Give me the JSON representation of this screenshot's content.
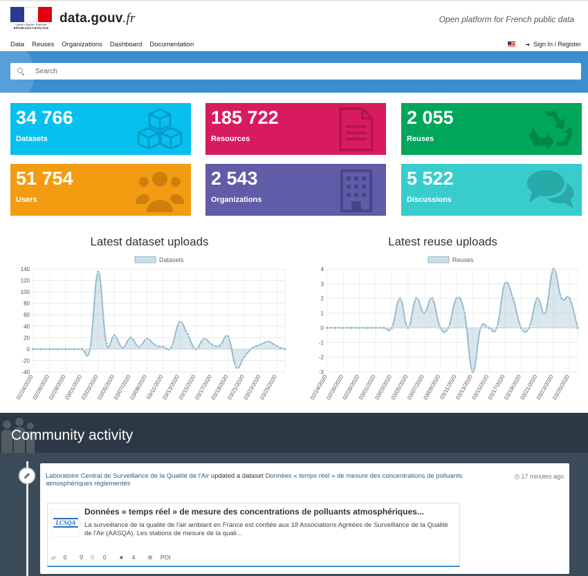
{
  "header": {
    "motto_line1": "Liberté • Égalité • Fraternité",
    "motto_line2": "RÉPUBLIQUE FRANÇAISE",
    "site_name": "data.gouv",
    "site_suffix": ".fr",
    "tagline": "Open platform for French public data",
    "nav": [
      "Data",
      "Reuses",
      "Organizations",
      "Dashboard",
      "Documentation"
    ],
    "signin": "Sign In / Register"
  },
  "search": {
    "placeholder": "Search"
  },
  "stats": [
    {
      "value": "34 766",
      "label": "Datasets",
      "color": "#06c0ef",
      "icon": "cubes-icon"
    },
    {
      "value": "185 722",
      "label": "Resources",
      "color": "#d81b5f",
      "icon": "document-icon"
    },
    {
      "value": "2 055",
      "label": "Reuses",
      "color": "#00a65a",
      "icon": "recycle-icon"
    },
    {
      "value": "51 754",
      "label": "Users",
      "color": "#f39c12",
      "icon": "users-icon"
    },
    {
      "value": "2 543",
      "label": "Organizations",
      "color": "#605ca8",
      "icon": "building-icon"
    },
    {
      "value": "5 522",
      "label": "Discussions",
      "color": "#39cccc",
      "icon": "comments-icon"
    }
  ],
  "chart_data": [
    {
      "type": "area",
      "title": "Latest dataset uploads",
      "x": [
        "02/24/2020",
        "02/25/2020",
        "02/26/2020",
        "02/27/2020",
        "02/28/2020",
        "02/29/2020",
        "03/01/2020",
        "03/02/2020",
        "03/03/2020",
        "03/04/2020",
        "03/05/2020",
        "03/06/2020",
        "03/07/2020",
        "03/08/2020",
        "03/09/2020",
        "03/10/2020",
        "03/11/2020",
        "03/12/2020",
        "03/13/2020",
        "03/14/2020",
        "03/15/2020",
        "03/16/2020",
        "03/17/2020",
        "03/18/2020",
        "03/19/2020",
        "03/20/2020",
        "03/21/2020",
        "03/22/2020",
        "03/23/2020",
        "03/24/2020",
        "03/25/2020",
        "03/26/2020"
      ],
      "tick_labels": [
        "02/24/2020",
        "02/26/2020",
        "02/28/2020",
        "03/01/2020",
        "03/03/2020",
        "03/05/2020",
        "03/07/2020",
        "03/09/2020",
        "03/11/2020",
        "03/13/2020",
        "03/15/2020",
        "03/17/2020",
        "03/19/2020",
        "03/21/2020",
        "03/23/2020",
        "03/25/2020"
      ],
      "series": [
        {
          "name": "Datasets",
          "values": [
            0,
            0,
            0,
            0,
            0,
            0,
            0,
            0,
            135,
            10,
            24,
            2,
            20,
            4,
            18,
            7,
            4,
            3,
            47,
            26,
            0,
            18,
            8,
            6,
            22,
            -32,
            -13,
            2,
            8,
            13,
            5,
            0
          ]
        }
      ],
      "ylim": [
        -40,
        140
      ],
      "yticks": [
        140,
        120,
        100,
        80,
        60,
        40,
        20,
        0,
        -20,
        -40
      ],
      "grid": true,
      "legend": "top"
    },
    {
      "type": "area",
      "title": "Latest reuse uploads",
      "x": [
        "02/24/2020",
        "02/25/2020",
        "02/26/2020",
        "02/27/2020",
        "02/28/2020",
        "02/29/2020",
        "03/01/2020",
        "03/02/2020",
        "03/03/2020",
        "03/04/2020",
        "03/05/2020",
        "03/06/2020",
        "03/07/2020",
        "03/08/2020",
        "03/09/2020",
        "03/10/2020",
        "03/11/2020",
        "03/12/2020",
        "03/13/2020",
        "03/14/2020",
        "03/15/2020",
        "03/16/2020",
        "03/17/2020",
        "03/18/2020",
        "03/19/2020",
        "03/20/2020",
        "03/21/2020",
        "03/22/2020",
        "03/23/2020",
        "03/24/2020",
        "03/25/2020",
        "03/26/2020"
      ],
      "tick_labels": [
        "02/24/2020",
        "02/26/2020",
        "02/28/2020",
        "03/01/2020",
        "03/03/2020",
        "03/05/2020",
        "03/07/2020",
        "03/09/2020",
        "03/11/2020",
        "03/13/2020",
        "03/15/2020",
        "03/17/2020",
        "03/19/2020",
        "03/21/2020",
        "03/23/2020",
        "03/25/2020"
      ],
      "series": [
        {
          "name": "Reuses",
          "values": [
            0,
            0,
            0,
            0,
            0,
            0,
            0,
            0,
            0,
            2,
            0,
            2,
            1,
            2,
            0,
            0,
            2,
            1,
            -3,
            0,
            0,
            0,
            3,
            2,
            0,
            0,
            2,
            1,
            4,
            2,
            2,
            0
          ]
        }
      ],
      "ylim": [
        -3,
        4
      ],
      "yticks": [
        4,
        3,
        2,
        1,
        0,
        -1,
        -2,
        -3
      ],
      "grid": true,
      "legend": "top"
    }
  ],
  "community": {
    "title": "Community activity",
    "activity": {
      "actor": "Laboratoire Central de Surveillance de la Qualité de l'Air",
      "verb": " updated a dataset ",
      "target": "Données « temps réel » de mesure des concentrations de polluants atmosphériques réglementés",
      "time": "17 minutes ago",
      "dataset": {
        "logo_text": "LCSQA",
        "title": "Données « temps réel » de mesure des concentrations de polluants atmosphériques...",
        "description": "La surveillance de la qualité de l'air ambiant en France est confiée aux 18 Associations Agréées de Surveillance de la Qualité de l'Air (AASQA). Les stations de mesure de la quali...",
        "reuses": "0",
        "followers": "0",
        "stars": "4",
        "tag": "POI"
      }
    }
  }
}
